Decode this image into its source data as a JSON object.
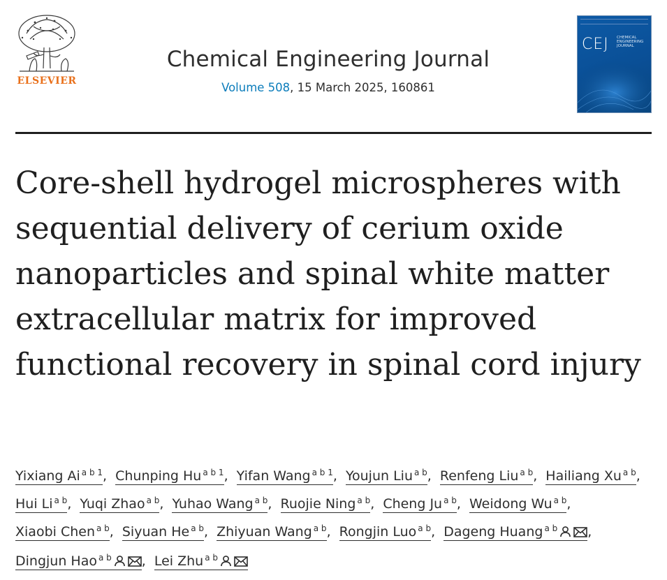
{
  "publisher": {
    "name": "ELSEVIER",
    "logo_icon": "elsevier-tree-icon",
    "color": "#e9711c"
  },
  "journal": {
    "title": "Chemical Engineering Journal",
    "volume_label": "Volume 508",
    "details": ", 15 March 2025, 160861",
    "link_color": "#0c7dbb",
    "cover": {
      "abbrev": "CEJ",
      "name_lines": [
        "CHEMICAL",
        "ENGINEERING",
        "JOURNAL"
      ],
      "color": "#0a4f96"
    }
  },
  "article": {
    "title": "Core-shell hydrogel microspheres with sequential delivery of cerium oxide nanoparticles and spinal white matter extracellular matrix for improved functional recovery in spinal cord injury"
  },
  "authors": [
    {
      "name": "Yixiang Ai",
      "sup": "a b 1"
    },
    {
      "name": "Chunping Hu",
      "sup": "a b 1"
    },
    {
      "name": "Yifan Wang",
      "sup": "a b 1"
    },
    {
      "name": "Youjun Liu",
      "sup": "a b"
    },
    {
      "name": "Renfeng Liu",
      "sup": "a b"
    },
    {
      "name": "Hailiang Xu",
      "sup": "a b"
    },
    {
      "name": "Hui Li",
      "sup": "a b"
    },
    {
      "name": "Yuqi Zhao",
      "sup": "a b"
    },
    {
      "name": "Yuhao Wang",
      "sup": "a b"
    },
    {
      "name": "Ruojie Ning",
      "sup": "a b"
    },
    {
      "name": "Cheng Ju",
      "sup": "a b"
    },
    {
      "name": "Weidong Wu",
      "sup": "a b"
    },
    {
      "name": "Xiaobi Chen",
      "sup": "a b"
    },
    {
      "name": "Siyuan He",
      "sup": "a b"
    },
    {
      "name": "Zhiyuan Wang",
      "sup": "a b"
    },
    {
      "name": "Rongjin Luo",
      "sup": "a b"
    },
    {
      "name": "Dageng Huang",
      "sup": "a b",
      "corresponding": true
    },
    {
      "name": "Dingjun Hao",
      "sup": "a b",
      "corresponding": true
    },
    {
      "name": "Lei Zhu",
      "sup": "a b",
      "corresponding": true
    }
  ],
  "icons": {
    "person": "person-icon",
    "email": "email-icon"
  }
}
